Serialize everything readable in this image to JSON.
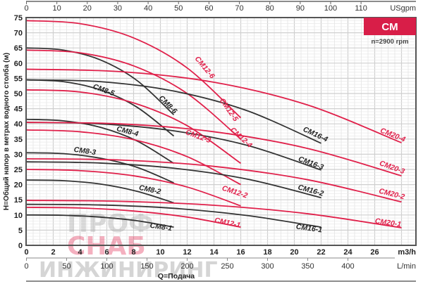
{
  "chart_data": {
    "type": "line",
    "title": "CM",
    "subtitle": "n=2900 rpm",
    "xlabel": "Q=Подача",
    "ylabel": "H=Общий напор в метрах водного столба (м)",
    "x_unit": "m3/h",
    "x2_unit": "L/min",
    "x_top_unit": "USgpm",
    "xlim": [
      0,
      28.8
    ],
    "ylim": [
      0,
      75
    ],
    "grid": true,
    "x_ticks": [
      "0",
      "2",
      "4",
      "6",
      "8",
      "10",
      "12",
      "14",
      "16",
      "18",
      "20",
      "22",
      "24",
      "26"
    ],
    "x2_ticks": [
      "0",
      "50",
      "100",
      "150",
      "200",
      "250",
      "300",
      "350",
      "400"
    ],
    "x_top_ticks": [
      "0",
      "10",
      "20",
      "30",
      "40",
      "50",
      "60",
      "70",
      "80",
      "90",
      "100",
      "110"
    ],
    "y_ticks": [
      "0",
      "5",
      "10",
      "15",
      "20",
      "25",
      "30",
      "35",
      "40",
      "45",
      "50",
      "55",
      "60",
      "65",
      "70",
      "75"
    ],
    "colors": {
      "CM8": "#333333",
      "CM12": "#e0204a",
      "CM16": "#333333",
      "CM20": "#e0204a",
      "badge": "#d81e48"
    },
    "series": [
      {
        "name": "CM8-1",
        "x": [
          0,
          2.75,
          5.5,
          8.25,
          11
        ],
        "y": [
          10,
          9.9,
          9.3,
          8.1,
          6
        ]
      },
      {
        "name": "CM8-2",
        "x": [
          0,
          2.75,
          5.5,
          8.25,
          11
        ],
        "y": [
          21.5,
          21.3,
          20.2,
          17.8,
          14
        ]
      },
      {
        "name": "CM8-3",
        "x": [
          0,
          2.75,
          5.5,
          8.25,
          11
        ],
        "y": [
          30.5,
          30.2,
          28.7,
          25.7,
          20.6
        ]
      },
      {
        "name": "CM8-4",
        "x": [
          0,
          2.75,
          5.5,
          8.25,
          11
        ],
        "y": [
          41.5,
          41.0,
          38.9,
          34.4,
          27
        ]
      },
      {
        "name": "CM8-5",
        "x": [
          0,
          2.75,
          5.5,
          8.25,
          11
        ],
        "y": [
          54.5,
          53.9,
          51.2,
          45.5,
          36
        ]
      },
      {
        "name": "CM8-6",
        "x": [
          0,
          2.75,
          5.5,
          8.25,
          11
        ],
        "y": [
          65,
          64.3,
          61.1,
          54.3,
          43
        ]
      },
      {
        "name": "CM12-1",
        "x": [
          0,
          4,
          8,
          12,
          16
        ],
        "y": [
          12.5,
          12.3,
          11.3,
          9.3,
          6
        ]
      },
      {
        "name": "CM12-2",
        "x": [
          0,
          4,
          8,
          12,
          16
        ],
        "y": [
          25,
          24.6,
          22.9,
          19.2,
          13
        ]
      },
      {
        "name": "CM12-3",
        "x": [
          0,
          4,
          8,
          12,
          16
        ],
        "y": [
          38,
          37.4,
          34.8,
          29.2,
          20
        ]
      },
      {
        "name": "CM12-4",
        "x": [
          0,
          4,
          8,
          12,
          16
        ],
        "y": [
          51.2,
          50.5,
          46.9,
          39.4,
          27
        ]
      },
      {
        "name": "CM12-5",
        "x": [
          0,
          4,
          8,
          12,
          16
        ],
        "y": [
          64.3,
          63.4,
          59.1,
          50.0,
          35
        ]
      },
      {
        "name": "CM12-6",
        "x": [
          0,
          4,
          8,
          12,
          16
        ],
        "y": [
          74,
          73.0,
          68.3,
          58.4,
          42
        ]
      },
      {
        "name": "CM16-1",
        "x": [
          0,
          5.5,
          11,
          16.5,
          22
        ],
        "y": [
          13.5,
          13.3,
          12.2,
          9.8,
          6
        ]
      },
      {
        "name": "CM16-2",
        "x": [
          0,
          5.5,
          11,
          16.5,
          22
        ],
        "y": [
          27.5,
          27.1,
          25.4,
          21.8,
          15.7
        ]
      },
      {
        "name": "CM16-3",
        "x": [
          0,
          5.5,
          11,
          16.5,
          22
        ],
        "y": [
          40.5,
          40.0,
          37.7,
          32.9,
          24.8
        ]
      },
      {
        "name": "CM16-4",
        "x": [
          0,
          5.5,
          11,
          16.5,
          22
        ],
        "y": [
          54.5,
          53.9,
          50.8,
          44.3,
          33.6
        ]
      },
      {
        "name": "CM20-1",
        "x": [
          0,
          7,
          14,
          21,
          28
        ],
        "y": [
          14.8,
          14.5,
          13.2,
          10.4,
          5.8
        ]
      },
      {
        "name": "CM20-2",
        "x": [
          0,
          7,
          14,
          21,
          28
        ],
        "y": [
          28.5,
          28.1,
          26.0,
          21.6,
          14.3
        ]
      },
      {
        "name": "CM20-3",
        "x": [
          0,
          7,
          14,
          21,
          28
        ],
        "y": [
          40.5,
          40.0,
          37.4,
          31.9,
          22.9
        ]
      },
      {
        "name": "CM20-4",
        "x": [
          0,
          7,
          14,
          21,
          28
        ],
        "y": [
          58,
          57.2,
          53.7,
          46.2,
          33.8
        ]
      }
    ]
  },
  "watermark": {
    "line1": "ПРОФ",
    "line2": "СНАБ",
    "line3": "ИНЖИНИРИНГ"
  }
}
